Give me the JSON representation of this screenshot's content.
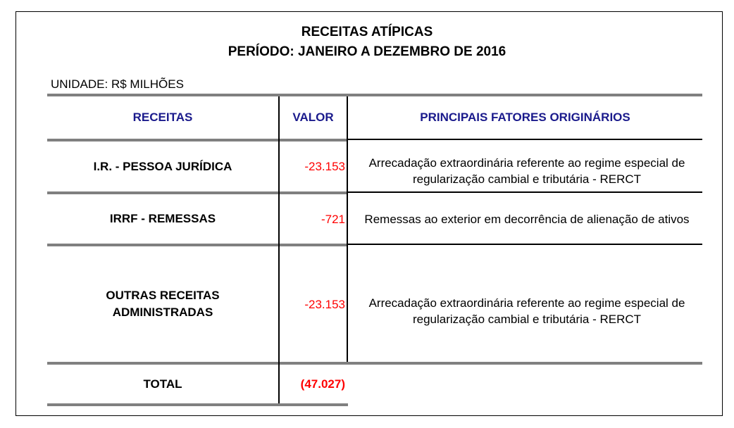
{
  "title": "RECEITAS ATÍPICAS",
  "subtitle": "PERÍODO: JANEIRO A DEZEMBRO DE 2016",
  "unit": "UNIDADE: R$ MILHÕES",
  "headers": {
    "receitas": "RECEITAS",
    "valor": "VALOR",
    "fatores": "PRINCIPAIS FATORES ORIGINÁRIOS"
  },
  "rows": [
    {
      "receita": "I.R. - PESSOA JURÍDICA",
      "valor": "-23.153",
      "fator": "Arrecadação extraordinária referente ao regime especial de regularização cambial e tributária - RERCT"
    },
    {
      "receita": "IRRF - REMESSAS",
      "valor": "-721",
      "fator": "Remessas ao exterior em decorrência de alienação de ativos"
    },
    {
      "receita": "OUTRAS RECEITAS ADMINISTRADAS",
      "valor": "-23.153",
      "fator": "Arrecadação extraordinária referente ao regime especial de regularização cambial e tributária - RERCT"
    }
  ],
  "total": {
    "label": "TOTAL",
    "valor": "(47.027)"
  },
  "colors": {
    "header": "#1a1a8c",
    "negative": "#ff0000",
    "rule": "#808080"
  }
}
